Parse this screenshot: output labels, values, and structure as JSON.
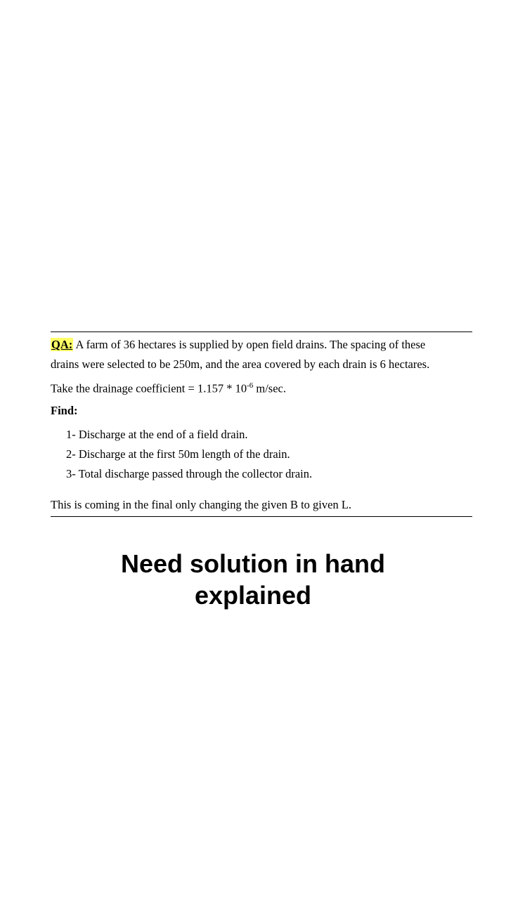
{
  "question": {
    "label": "QA:",
    "text_line1": " A farm of 36 hectares is supplied by open field drains. The spacing of these",
    "text_line2": "drains were selected to be 250m, and the area covered by each drain is 6 hectares.",
    "coef_prefix": "Take the drainage coefficient = 1.157 * 10",
    "coef_exp": "-6",
    "coef_suffix": " m/sec.",
    "find_label": "Find:",
    "items": [
      "1-  Discharge at the end of a field drain.",
      "2-  Discharge at the first 50m length of the drain.",
      "3-  Total discharge passed through the collector drain."
    ],
    "note": "This is coming in the final only changing the given B to given L."
  },
  "caption": {
    "line1": "Need solution in hand",
    "line2": "explained"
  },
  "colors": {
    "highlight": "#ffff66",
    "text": "#000000",
    "background": "#ffffff"
  }
}
